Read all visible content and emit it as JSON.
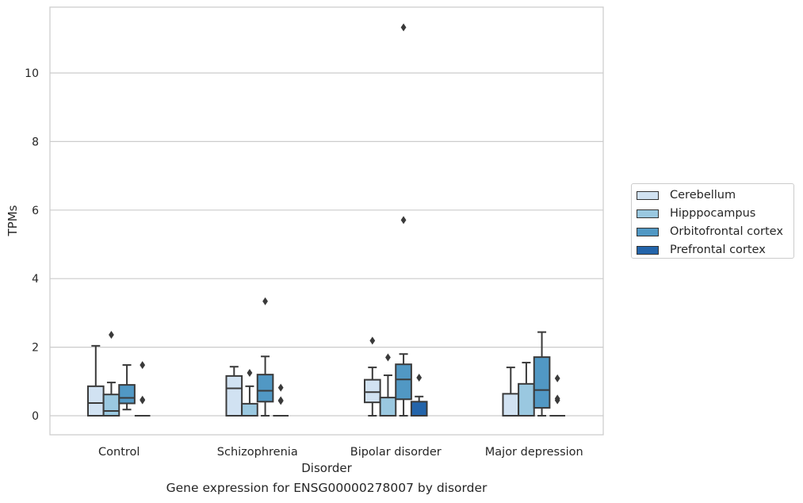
{
  "chart_data": {
    "type": "box",
    "title": "",
    "caption": "Gene expression for ENSG00000278007 by disorder",
    "xlabel": "Disorder",
    "ylabel": "TPMs",
    "ylim": [
      -0.55,
      11.9
    ],
    "yticks": [
      0,
      2,
      4,
      6,
      8,
      10
    ],
    "grid": "horizontal",
    "legend_position": "right",
    "categories": [
      "Control",
      "Schizophrenia",
      "Bipolar disorder",
      "Major depression"
    ],
    "series": [
      {
        "name": "Cerebellum",
        "color": "#d1e2f2",
        "boxes": [
          {
            "category": "Control",
            "min": 0,
            "q1": 0,
            "median": 0.37,
            "q3": 0.86,
            "max": 2.04,
            "outliers": []
          },
          {
            "category": "Schizophrenia",
            "min": 0,
            "q1": 0,
            "median": 0.8,
            "q3": 1.16,
            "max": 1.43,
            "outliers": []
          },
          {
            "category": "Bipolar disorder",
            "min": 0,
            "q1": 0.39,
            "median": 0.69,
            "q3": 1.05,
            "max": 1.41,
            "outliers": [
              2.19
            ]
          },
          {
            "category": "Major depression",
            "min": 0,
            "q1": 0,
            "median": 0,
            "q3": 0.64,
            "max": 1.41,
            "outliers": []
          }
        ]
      },
      {
        "name": "Hipppocampus",
        "color": "#9ac8e0",
        "boxes": [
          {
            "category": "Control",
            "min": 0,
            "q1": 0,
            "median": 0.14,
            "q3": 0.62,
            "max": 0.97,
            "outliers": [
              2.36
            ]
          },
          {
            "category": "Schizophrenia",
            "min": 0,
            "q1": 0,
            "median": 0,
            "q3": 0.35,
            "max": 0.86,
            "outliers": [
              1.25
            ]
          },
          {
            "category": "Bipolar disorder",
            "min": 0,
            "q1": 0,
            "median": 0,
            "q3": 0.53,
            "max": 1.18,
            "outliers": [
              1.7
            ]
          },
          {
            "category": "Major depression",
            "min": 0,
            "q1": 0,
            "median": 0,
            "q3": 0.93,
            "max": 1.55,
            "outliers": []
          }
        ]
      },
      {
        "name": "Orbitofrontal cortex",
        "color": "#5198c4",
        "boxes": [
          {
            "category": "Control",
            "min": 0.18,
            "q1": 0.36,
            "median": 0.52,
            "q3": 0.9,
            "max": 1.48,
            "outliers": []
          },
          {
            "category": "Schizophrenia",
            "min": 0,
            "q1": 0.41,
            "median": 0.73,
            "q3": 1.2,
            "max": 1.73,
            "outliers": [
              3.34
            ]
          },
          {
            "category": "Bipolar disorder",
            "min": 0,
            "q1": 0.48,
            "median": 1.06,
            "q3": 1.5,
            "max": 1.8,
            "outliers": [
              5.71,
              11.33
            ]
          },
          {
            "category": "Major depression",
            "min": 0,
            "q1": 0.23,
            "median": 0.75,
            "q3": 1.71,
            "max": 2.44,
            "outliers": []
          }
        ]
      },
      {
        "name": "Prefrontal cortex",
        "color": "#2364aa",
        "boxes": [
          {
            "category": "Control",
            "min": 0,
            "q1": 0,
            "median": 0,
            "q3": 0,
            "max": 0,
            "outliers": [
              0.45,
              0.47,
              1.48
            ]
          },
          {
            "category": "Schizophrenia",
            "min": 0,
            "q1": 0,
            "median": 0,
            "q3": 0,
            "max": 0,
            "outliers": [
              0.43,
              0.45,
              0.82
            ]
          },
          {
            "category": "Bipolar disorder",
            "min": 0,
            "q1": 0,
            "median": 0,
            "q3": 0.41,
            "max": 0.56,
            "outliers": [
              1.11
            ]
          },
          {
            "category": "Major depression",
            "min": 0,
            "q1": 0,
            "median": 0,
            "q3": 0,
            "max": 0,
            "outliers": [
              0.45,
              0.5,
              1.09
            ]
          }
        ]
      }
    ]
  }
}
